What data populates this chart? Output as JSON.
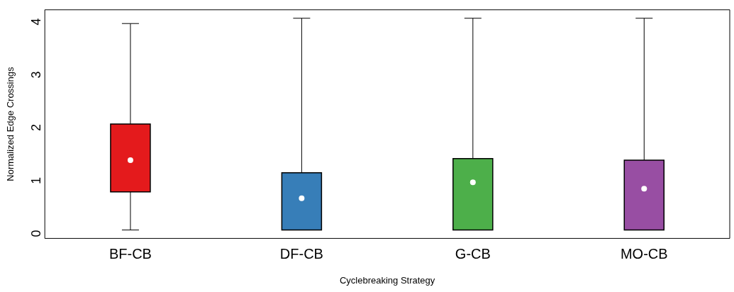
{
  "chart_data": {
    "type": "box",
    "xlabel": "Cyclebreaking Strategy",
    "ylabel": "Normalized Edge Crossings",
    "categories": [
      "BF-CB",
      "DF-CB",
      "G-CB",
      "MO-CB"
    ],
    "boxes": [
      {
        "low": 0,
        "q1": 0.72,
        "median": 1.32,
        "q3": 2.0,
        "high": 3.9
      },
      {
        "low": 0,
        "q1": 0,
        "median": 0.6,
        "q3": 1.08,
        "high": 4
      },
      {
        "low": 0,
        "q1": 0,
        "median": 0.9,
        "q3": 1.35,
        "high": 4
      },
      {
        "low": 0,
        "q1": 0,
        "median": 0.78,
        "q3": 1.32,
        "high": 4
      }
    ],
    "colors": [
      "#e41a1c",
      "#377eb8",
      "#4daf4a",
      "#984ea3"
    ],
    "ylim": [
      -0.16,
      4.16
    ],
    "yticks": [
      0,
      1,
      2,
      3,
      4
    ],
    "grid": false,
    "legend": false
  }
}
